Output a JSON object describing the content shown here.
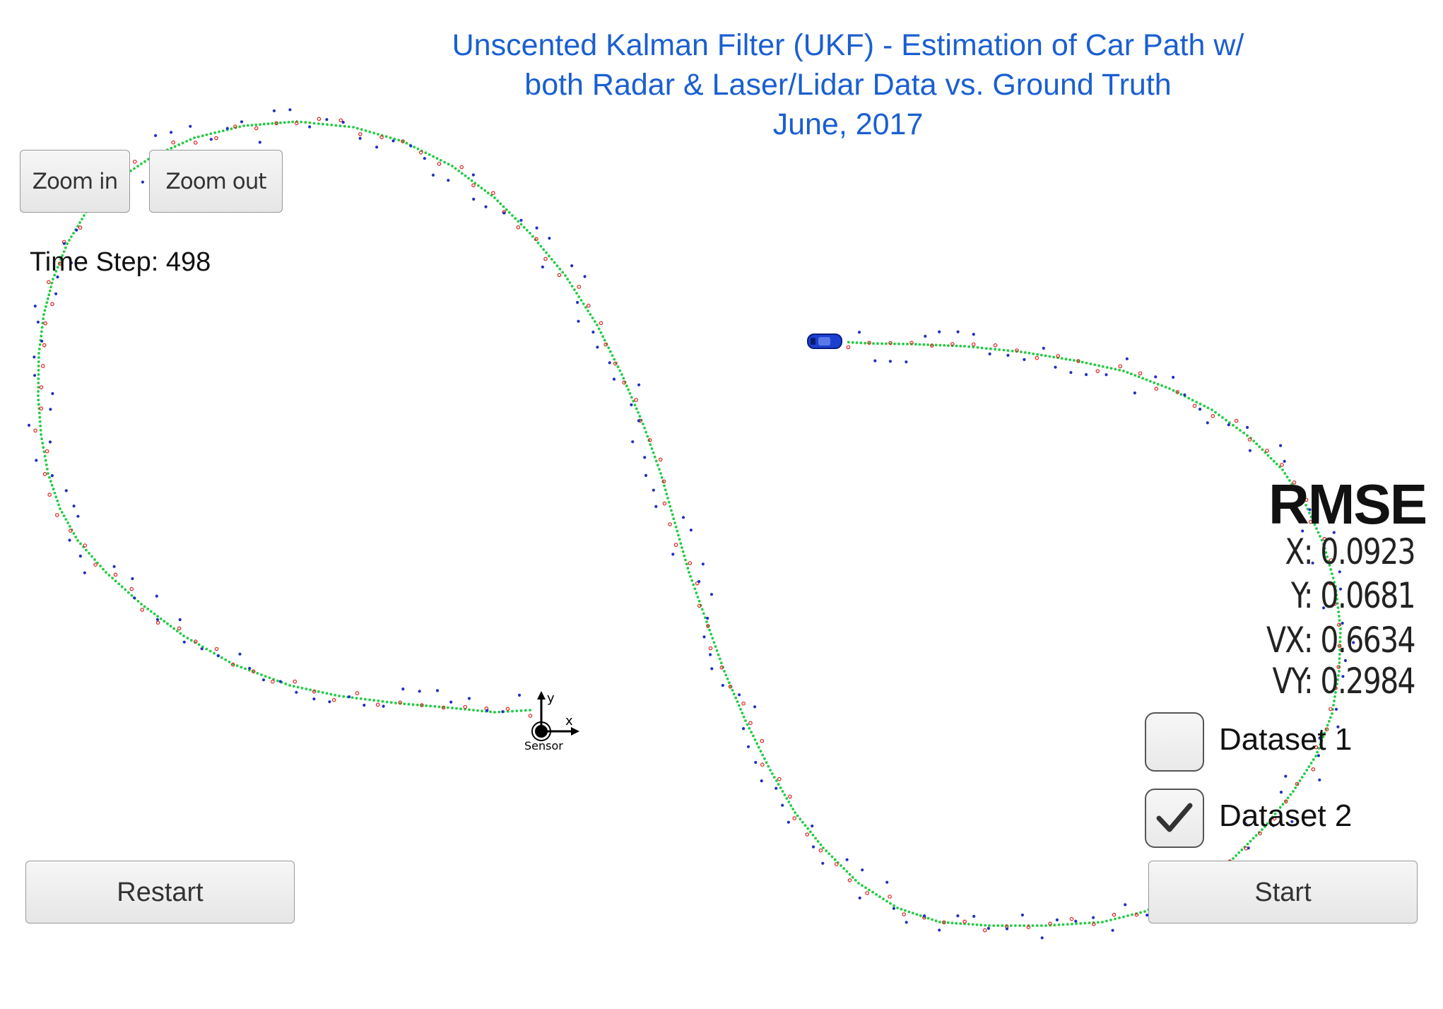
{
  "title_lines": [
    "Unscented Kalman Filter (UKF) - Estimation of Car Path w/",
    "both Radar & Laser/Lidar Data vs. Ground Truth",
    "June, 2017"
  ],
  "controls": {
    "zoom_in_label": "Zoom in",
    "zoom_out_label": "Zoom out",
    "restart_label": "Restart",
    "start_label": "Start"
  },
  "time_step": "Time Step: 498",
  "rmse": {
    "title": "RMSE",
    "x": "X: 0.0923",
    "y": "Y: 0.0681",
    "vx": "VX: 0.6634",
    "vy": "VY: 0.2984"
  },
  "datasets": [
    {
      "label": "Dataset 1",
      "checked": false
    },
    {
      "label": "Dataset 2",
      "checked": true
    }
  ],
  "sensor": {
    "label": "Sensor",
    "x_axis": "x",
    "y_axis": "y"
  },
  "colors": {
    "title": "#1a5fd1",
    "ground_truth": "#22cc44",
    "lidar": "#e02020",
    "radar": "#2030c0",
    "car": "#1c3fcf"
  }
}
